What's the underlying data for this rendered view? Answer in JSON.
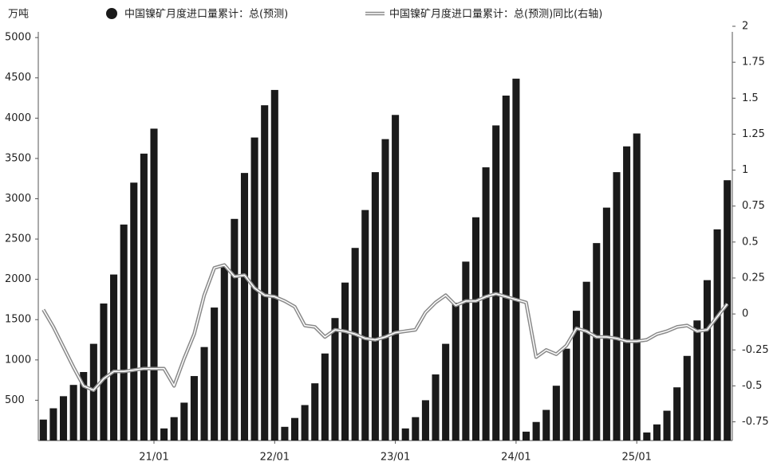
{
  "chart_data": {
    "type": "bar-line",
    "unit_label": "万吨",
    "categories": [
      null,
      null,
      null,
      null,
      null,
      null,
      null,
      null,
      null,
      null,
      null,
      null,
      "21/01",
      null,
      null,
      null,
      null,
      null,
      null,
      null,
      null,
      null,
      null,
      null,
      "22/01",
      null,
      null,
      null,
      null,
      null,
      null,
      null,
      null,
      null,
      null,
      null,
      "23/01",
      null,
      null,
      null,
      null,
      null,
      null,
      null,
      null,
      null,
      null,
      null,
      "24/01",
      null,
      null,
      null,
      null,
      null,
      null,
      null,
      null,
      null,
      null,
      null,
      "25/01",
      null,
      null,
      null,
      null,
      null,
      null,
      null,
      null
    ],
    "series": [
      {
        "name": "中国镍矿月度进口量累计：总(预测)",
        "color": "#1a1a1a",
        "kind": "bar",
        "values": [
          260,
          400,
          550,
          690,
          850,
          1200,
          1700,
          2060,
          2680,
          3200,
          3560,
          3870,
          150,
          290,
          470,
          800,
          1160,
          1650,
          2160,
          2750,
          3320,
          3760,
          4160,
          4350,
          170,
          280,
          440,
          710,
          1080,
          1520,
          1960,
          2390,
          2860,
          3330,
          3740,
          4040,
          150,
          290,
          500,
          820,
          1200,
          1710,
          2220,
          2770,
          3390,
          3910,
          4280,
          4490,
          110,
          230,
          380,
          680,
          1140,
          1610,
          1970,
          2450,
          2890,
          3330,
          3650,
          3810,
          100,
          200,
          370,
          660,
          1050,
          1490,
          1990,
          2620,
          3230
        ]
      },
      {
        "name": "中国镍矿月度进口量累计：总(预测)同比(右轴)",
        "color": "#8a8a8a",
        "kind": "line",
        "axis": "y2",
        "values": [
          0.03,
          -0.09,
          -0.23,
          -0.37,
          -0.5,
          -0.53,
          -0.45,
          -0.4,
          -0.4,
          -0.39,
          -0.38,
          -0.38,
          -0.38,
          -0.5,
          -0.31,
          -0.14,
          0.13,
          0.32,
          0.34,
          0.26,
          0.27,
          0.18,
          0.13,
          0.12,
          0.09,
          0.05,
          -0.08,
          -0.09,
          -0.16,
          -0.11,
          -0.12,
          -0.14,
          -0.17,
          -0.18,
          -0.16,
          -0.13,
          -0.12,
          -0.11,
          0.01,
          0.08,
          0.13,
          0.06,
          0.09,
          0.09,
          0.12,
          0.14,
          0.12,
          0.1,
          0.08,
          -0.3,
          -0.25,
          -0.28,
          -0.22,
          -0.1,
          -0.12,
          -0.16,
          -0.16,
          -0.17,
          -0.19,
          -0.19,
          -0.18,
          -0.14,
          -0.12,
          -0.09,
          -0.08,
          -0.12,
          -0.11,
          -0.02,
          0.07
        ]
      }
    ],
    "ylim": [
      0,
      5140
    ],
    "yticks": [
      500,
      1000,
      1500,
      2000,
      2500,
      3000,
      3500,
      4000,
      4500,
      5000
    ],
    "y2lim": [
      -0.88,
      2
    ],
    "y2ticks": [
      -0.75,
      -0.5,
      -0.25,
      0,
      0.25,
      0.5,
      0.75,
      1,
      1.25,
      1.5,
      1.75,
      2
    ],
    "grid": false
  }
}
